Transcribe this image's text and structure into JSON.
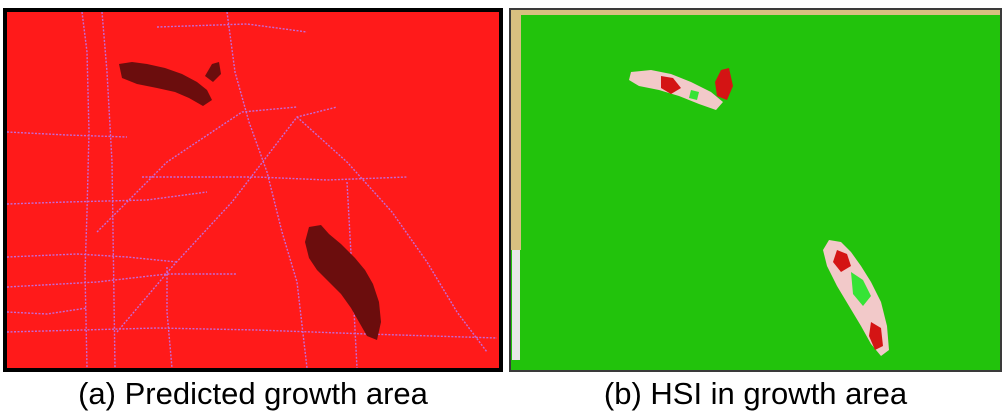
{
  "figure": {
    "panel_a": {
      "caption": "(a) Predicted growth area",
      "colors": {
        "background": "#ff1a1a",
        "roads": "#c46bd8",
        "growth_area": "#6b0d0d"
      }
    },
    "panel_b": {
      "caption": "(b) HSI in growth area",
      "colors": {
        "background": "#22c30c",
        "frame": "#d8c080",
        "hsi_high": "#d41414",
        "hsi_low": "#f2c9c9",
        "hsi_mid": "#36e336"
      }
    }
  }
}
